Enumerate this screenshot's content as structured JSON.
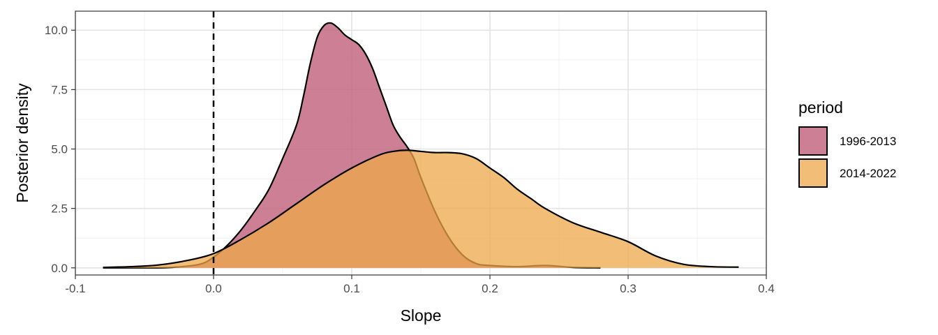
{
  "chart_data": {
    "type": "area",
    "subtype": "density",
    "title": "",
    "xlabel": "Slope",
    "ylabel": "Posterior density",
    "xlim": [
      -0.1,
      0.4
    ],
    "ylim": [
      -0.3,
      10.8
    ],
    "x_ticks": [
      -0.1,
      0.0,
      0.1,
      0.2,
      0.3,
      0.4
    ],
    "x_tick_labels": [
      "-0.1",
      "0.0",
      "0.1",
      "0.2",
      "0.3",
      "0.4"
    ],
    "y_ticks": [
      0,
      2.5,
      5,
      7.5,
      10
    ],
    "y_tick_labels": [
      "0.0",
      "2.5",
      "5.0",
      "7.5",
      "10.0"
    ],
    "grid": true,
    "reference_line": {
      "x": 0.0,
      "style": "dashed"
    },
    "legend": {
      "title": "period",
      "position": "right"
    },
    "series": [
      {
        "name": "1996-2013",
        "color": "#C0607A",
        "opacity": 0.8,
        "x": [
          -0.08,
          -0.05,
          -0.03,
          -0.01,
          0.0,
          0.01,
          0.02,
          0.03,
          0.04,
          0.05,
          0.06,
          0.065,
          0.07,
          0.075,
          0.08,
          0.085,
          0.09,
          0.095,
          0.1,
          0.105,
          0.11,
          0.115,
          0.12,
          0.125,
          0.13,
          0.135,
          0.14,
          0.145,
          0.15,
          0.16,
          0.17,
          0.18,
          0.19,
          0.2,
          0.22,
          0.24,
          0.26,
          0.28
        ],
        "y": [
          0.0,
          0.0,
          0.02,
          0.15,
          0.45,
          0.95,
          1.6,
          2.4,
          3.3,
          4.6,
          6.0,
          7.2,
          8.6,
          9.7,
          10.2,
          10.3,
          10.1,
          9.8,
          9.6,
          9.4,
          9.0,
          8.4,
          7.6,
          6.8,
          6.0,
          5.5,
          5.1,
          4.6,
          3.8,
          2.4,
          1.3,
          0.55,
          0.18,
          0.1,
          0.05,
          0.1,
          0.02,
          0.0
        ]
      },
      {
        "name": "2014-2022",
        "color": "#EDA84A",
        "opacity": 0.75,
        "x": [
          -0.08,
          -0.06,
          -0.04,
          -0.02,
          0.0,
          0.02,
          0.04,
          0.06,
          0.08,
          0.1,
          0.12,
          0.13,
          0.14,
          0.15,
          0.16,
          0.17,
          0.18,
          0.19,
          0.2,
          0.21,
          0.22,
          0.23,
          0.24,
          0.26,
          0.28,
          0.3,
          0.32,
          0.34,
          0.36,
          0.38
        ],
        "y": [
          0.02,
          0.05,
          0.12,
          0.3,
          0.6,
          1.2,
          1.9,
          2.7,
          3.5,
          4.2,
          4.75,
          4.9,
          4.95,
          4.9,
          4.85,
          4.85,
          4.8,
          4.6,
          4.2,
          3.8,
          3.3,
          2.9,
          2.5,
          1.9,
          1.5,
          1.1,
          0.5,
          0.15,
          0.05,
          0.03
        ]
      }
    ]
  }
}
